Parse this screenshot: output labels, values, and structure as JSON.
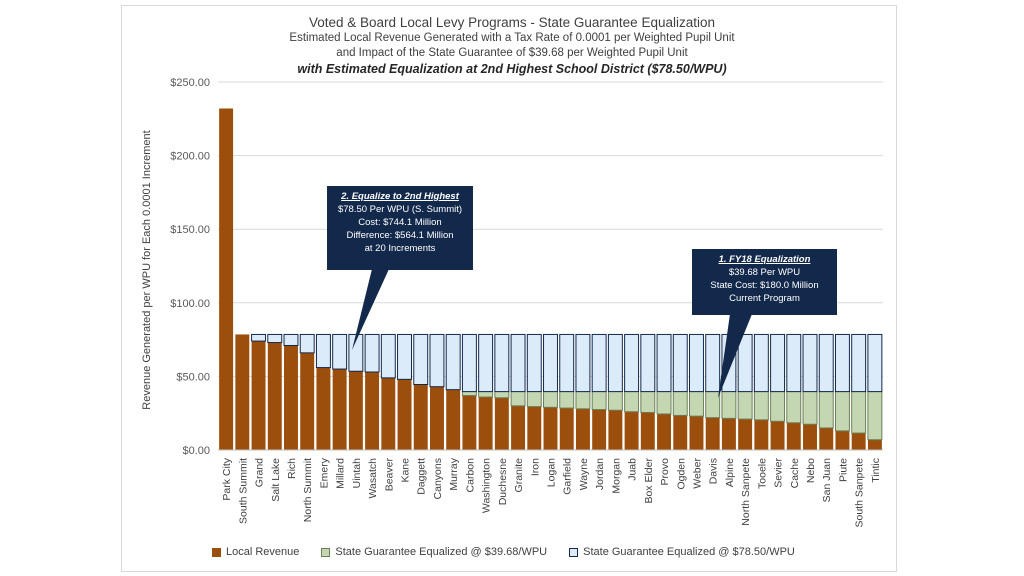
{
  "chart_data": {
    "type": "bar",
    "stacked": true,
    "title": "Voted & Board Local Levy Programs - State Guarantee Equalization",
    "subtitle1": "Estimated Local Revenue Generated with a Tax Rate of 0.0001 per Weighted Pupil Unit",
    "subtitle2": "and Impact of the State Guarantee of $39.68 per Weighted Pupil Unit",
    "subtitle3": "with Estimated Equalization at 2nd Highest School District ($78.50/WPU)",
    "ylabel": "Revenue Generated per WPU for Each 0.0001 Increment",
    "ylim": [
      0,
      250
    ],
    "yticks": [
      0,
      50,
      100,
      150,
      200,
      250
    ],
    "ytick_labels": [
      "$0.00",
      "$50.00",
      "$100.00",
      "$150.00",
      "$200.00",
      "$250.00"
    ],
    "guarantee_levels": [
      39.68,
      78.5
    ],
    "categories": [
      "Park City",
      "South Summit",
      "Grand",
      "Salt Lake",
      "Rich",
      "North Summit",
      "Emery",
      "Millard",
      "Uintah",
      "Wasatch",
      "Beaver",
      "Kane",
      "Daggett",
      "Canyons",
      "Murray",
      "Carbon",
      "Washington",
      "Duchesne",
      "Granite",
      "Iron",
      "Logan",
      "Garfield",
      "Wayne",
      "Jordan",
      "Morgan",
      "Juab",
      "Box Elder",
      "Provo",
      "Ogden",
      "Weber",
      "Davis",
      "Alpine",
      "North Sanpete",
      "Tooele",
      "Sevier",
      "Cache",
      "Nebo",
      "San Juan",
      "Piute",
      "South Sanpete",
      "Tintic"
    ],
    "series": [
      {
        "name": "Local Revenue",
        "color": "#9c4f0c",
        "values": [
          232,
          78.5,
          74,
          73,
          71,
          66,
          56,
          55,
          53.5,
          53,
          49,
          48,
          44.5,
          43,
          41,
          37,
          36,
          35.5,
          30,
          29.5,
          29,
          28.5,
          28,
          27.5,
          27,
          26,
          25.5,
          24.5,
          23.5,
          23,
          22,
          21.5,
          21,
          20.5,
          19.5,
          18.5,
          17.5,
          15,
          13,
          11.5,
          7
        ]
      },
      {
        "name": "State Guarantee Equalized @ $39.68/WPU",
        "color": "#c5d6b3",
        "values": [
          0,
          0,
          0,
          0,
          0,
          0,
          0,
          0,
          0,
          0,
          0,
          0,
          0,
          0,
          0,
          2.68,
          3.68,
          4.18,
          9.68,
          10.18,
          10.68,
          11.18,
          11.68,
          12.18,
          12.68,
          13.68,
          14.18,
          15.18,
          16.18,
          16.68,
          17.68,
          18.18,
          18.68,
          19.18,
          20.18,
          21.18,
          22.18,
          24.68,
          26.68,
          28.18,
          32.68
        ]
      },
      {
        "name": "State Guarantee Equalized @ $78.50/WPU",
        "color": "#dcebfa",
        "values": [
          0,
          0,
          4.5,
          5.5,
          7.5,
          12.5,
          22.5,
          23.5,
          25,
          25.5,
          29.5,
          30.5,
          34,
          35.5,
          37.5,
          38.82,
          38.82,
          38.82,
          38.82,
          38.82,
          38.82,
          38.82,
          38.82,
          38.82,
          38.82,
          38.82,
          38.82,
          38.82,
          38.82,
          38.82,
          38.82,
          38.82,
          38.82,
          38.82,
          38.82,
          38.82,
          38.82,
          38.82,
          38.82,
          38.82,
          38.82
        ]
      }
    ],
    "annotations": [
      {
        "heading": "2. Equalize to 2nd Highest",
        "lines": [
          "$78.50 Per WPU (S. Summit)",
          "Cost: $744.1 Million",
          "Difference: $564.1 Million",
          "at 20 Increments"
        ]
      },
      {
        "heading": "1. FY18 Equalization",
        "lines": [
          "$39.68 Per WPU",
          "State Cost: $180.0 Million",
          "Current Program"
        ]
      }
    ]
  },
  "legend": {
    "local": "Local Revenue",
    "eq1": "State Guarantee Equalized @ $39.68/WPU",
    "eq2": "State Guarantee Equalized @ $78.50/WPU"
  }
}
